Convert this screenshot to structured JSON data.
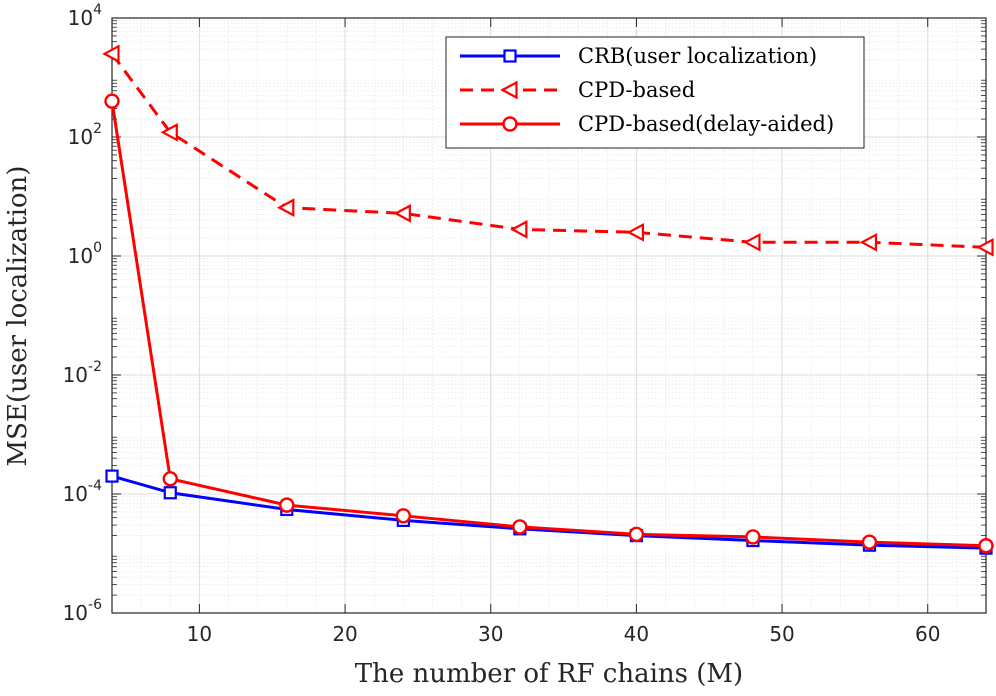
{
  "chart_data": {
    "type": "line",
    "title": "",
    "xlabel": "The number of RF chains (M)",
    "ylabel": "MSE(user localization)",
    "xscale": "linear",
    "yscale": "log",
    "xlim": [
      4,
      64
    ],
    "ylim": [
      1e-06,
      10000.0
    ],
    "xticks": [
      10,
      20,
      30,
      40,
      50,
      60
    ],
    "xtick_labels": [
      "10",
      "20",
      "30",
      "40",
      "50",
      "60"
    ],
    "yticks": [
      1e-06,
      0.0001,
      0.01,
      1,
      100,
      10000
    ],
    "ytick_labels": [
      {
        "base": "10",
        "exp": "-6"
      },
      {
        "base": "10",
        "exp": "-4"
      },
      {
        "base": "10",
        "exp": "-2"
      },
      {
        "base": "10",
        "exp": "0"
      },
      {
        "base": "10",
        "exp": "2"
      },
      {
        "base": "10",
        "exp": "4"
      }
    ],
    "grid": true,
    "minor_grid": true,
    "legend_position": "top-right",
    "x": [
      4,
      8,
      16,
      24,
      32,
      40,
      48,
      56,
      64
    ],
    "series": [
      {
        "name": "CRB(user localization)",
        "color": "#0000ff",
        "line_style": "solid",
        "marker": "square",
        "values": [
          0.0002,
          0.000105,
          5.5e-05,
          3.6e-05,
          2.6e-05,
          2e-05,
          1.65e-05,
          1.38e-05,
          1.23e-05
        ]
      },
      {
        "name": "CPD-based",
        "color": "#ff0000",
        "line_style": "dashed",
        "marker": "triangle-left",
        "values": [
          2500,
          120,
          6.5,
          5.2,
          2.8,
          2.5,
          1.7,
          1.7,
          1.4
        ]
      },
      {
        "name": "CPD-based(delay-aided)",
        "color": "#ff0000",
        "line_style": "solid",
        "marker": "circle",
        "values": [
          400,
          0.00018,
          6.5e-05,
          4.3e-05,
          2.8e-05,
          2.1e-05,
          1.9e-05,
          1.55e-05,
          1.35e-05
        ]
      }
    ]
  }
}
